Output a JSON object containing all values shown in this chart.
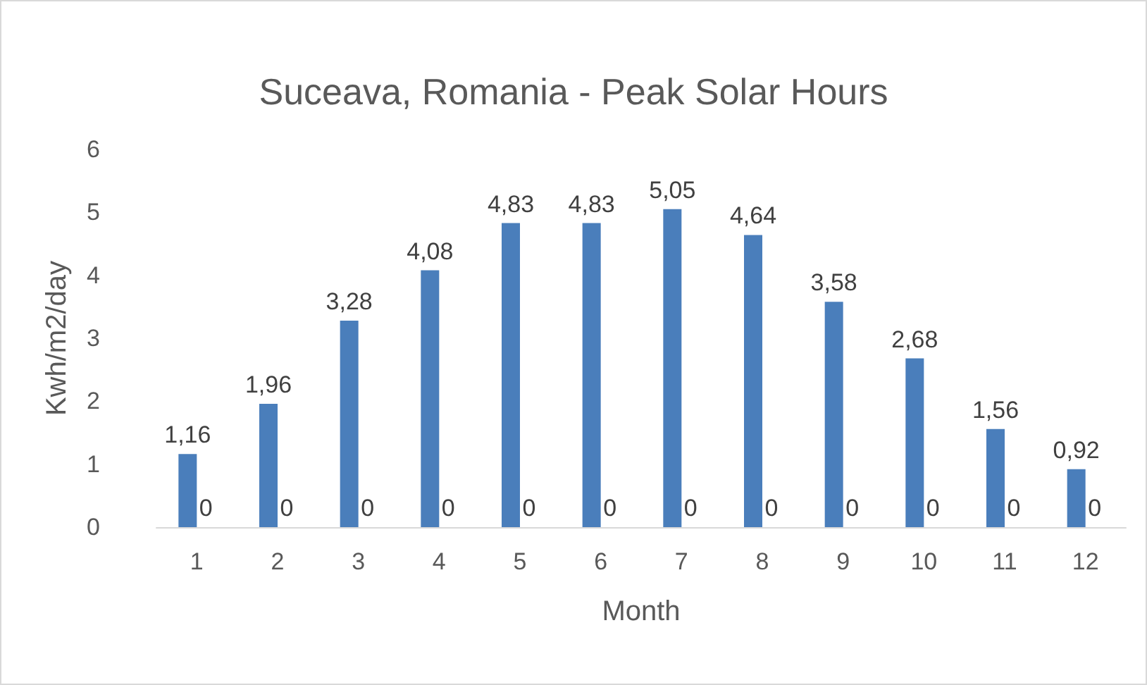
{
  "chart_data": {
    "type": "bar",
    "title": "Suceava, Romania - Peak Solar Hours",
    "xlabel": "Month",
    "ylabel": "Kwh/m2/day",
    "categories": [
      "1",
      "2",
      "3",
      "4",
      "5",
      "6",
      "7",
      "8",
      "9",
      "10",
      "11",
      "12"
    ],
    "series": [
      {
        "color": "#4a7ebb",
        "values": [
          1.16,
          1.96,
          3.28,
          4.08,
          4.83,
          4.83,
          5.05,
          4.64,
          3.58,
          2.68,
          1.56,
          0.92
        ],
        "value_labels": [
          "1,16",
          "1,96",
          "3,28",
          "4,08",
          "4,83",
          "4,83",
          "5,05",
          "4,64",
          "3,58",
          "2,68",
          "1,56",
          "0,92"
        ]
      },
      {
        "values": [
          0,
          0,
          0,
          0,
          0,
          0,
          0,
          0,
          0,
          0,
          0,
          0
        ],
        "value_labels": [
          "0",
          "0",
          "0",
          "0",
          "0",
          "0",
          "0",
          "0",
          "0",
          "0",
          "0",
          "0"
        ]
      }
    ],
    "ylim": [
      0,
      6
    ],
    "yticks": [
      0,
      1,
      2,
      3,
      4,
      5,
      6
    ],
    "grid": false
  }
}
